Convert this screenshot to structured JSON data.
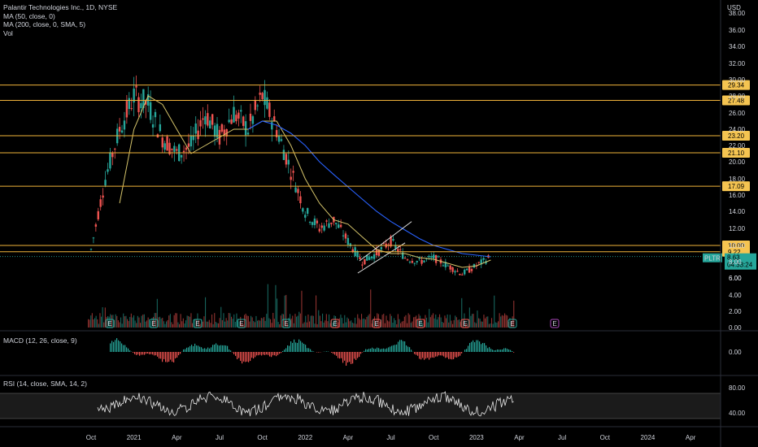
{
  "header": {
    "title": "Palantir Technologies Inc., 1D, NYSE",
    "ma50": "MA (50, close, 0)",
    "ma200": "MA (200, close, 0, SMA, 5)",
    "vol": "Vol",
    "currency": "USD"
  },
  "panes": {
    "macd_label": "MACD (12, 26, close, 9)",
    "rsi_label": "RSI (14, close, SMA, 14, 2)"
  },
  "price_tag": {
    "symbol": "PLTR",
    "price": "8.63",
    "countdown": "04:33:24"
  },
  "colors": {
    "up": "#26a69a",
    "down": "#ef5350",
    "ma50": "#d4c36a",
    "ma200": "#2962ff",
    "level": "#f0b33a",
    "level_label": "#f5c451",
    "price_tag": "#26a69a",
    "earnings": "#26a69a",
    "dividend_marker": "#ab47bc"
  },
  "chart_data": [
    {
      "type": "line",
      "title": "Palantir Technologies Inc., 1D, NYSE",
      "ylabel": "USD",
      "ylim": [
        6,
        38
      ],
      "y_ticks": [
        "38.00",
        "36.00",
        "34.00",
        "32.00",
        "30.00",
        "28.00",
        "26.00",
        "24.00",
        "22.00",
        "20.00",
        "18.00",
        "16.00",
        "14.00",
        "12.00",
        "10.00",
        "8.00",
        "6.00"
      ],
      "x_ticks": [
        "Oct",
        "2021",
        "Apr",
        "Jul",
        "Oct",
        "2022",
        "Apr",
        "Jul",
        "Oct",
        "2023",
        "Apr",
        "Jul",
        "Oct",
        "2024",
        "Apr"
      ],
      "horizontal_levels": [
        {
          "value": 29.34,
          "label": "29.34"
        },
        {
          "value": 27.48,
          "label": "27.48"
        },
        {
          "value": 23.2,
          "label": "23.20"
        },
        {
          "value": 21.1,
          "label": "21.10"
        },
        {
          "value": 17.09,
          "label": "17.09"
        },
        {
          "value": 10.0,
          "label": "10.00"
        },
        {
          "value": 9.22,
          "label": "9.22"
        }
      ],
      "last_price": 8.63,
      "series": [
        {
          "name": "PLTR",
          "x": [
            "2020-10",
            "2020-11",
            "2020-12",
            "2021-01",
            "2021-02",
            "2021-03",
            "2021-04",
            "2021-05",
            "2021-06",
            "2021-07",
            "2021-08",
            "2021-09",
            "2021-10",
            "2021-11",
            "2021-12",
            "2022-01",
            "2022-02",
            "2022-03",
            "2022-04",
            "2022-05",
            "2022-06",
            "2022-07",
            "2022-08",
            "2022-09",
            "2022-10",
            "2022-11",
            "2022-12",
            "2023-01",
            "2023-02"
          ],
          "values": [
            9.5,
            18,
            24,
            28,
            27,
            23,
            21,
            22,
            26,
            23,
            26,
            24,
            28,
            24,
            19,
            14,
            12,
            13,
            10.5,
            8,
            9,
            10.5,
            8.5,
            8,
            8.5,
            7.5,
            6.5,
            7.5,
            8.6
          ]
        },
        {
          "name": "MA (50, close, 0)",
          "x": [
            "2020-12",
            "2021-01",
            "2021-02",
            "2021-03",
            "2021-04",
            "2021-05",
            "2021-06",
            "2021-07",
            "2021-08",
            "2021-09",
            "2021-10",
            "2021-11",
            "2021-12",
            "2022-01",
            "2022-02",
            "2022-03",
            "2022-04",
            "2022-05",
            "2022-06",
            "2022-07",
            "2022-08",
            "2022-09",
            "2022-10",
            "2022-11",
            "2022-12",
            "2023-01",
            "2023-02"
          ],
          "values": [
            15,
            24,
            28,
            27,
            24,
            21,
            22,
            23,
            24,
            24,
            25,
            25,
            22,
            18,
            15,
            13,
            12.5,
            11,
            9.5,
            9,
            9,
            8.5,
            8.3,
            7.8,
            7.3,
            7.5,
            8.2
          ]
        },
        {
          "name": "MA (200, close, 0, SMA, 5)",
          "x": [
            "2021-09",
            "2021-10",
            "2021-11",
            "2021-12",
            "2022-01",
            "2022-02",
            "2022-03",
            "2022-04",
            "2022-05",
            "2022-06",
            "2022-07",
            "2022-08",
            "2022-09",
            "2022-10",
            "2022-11",
            "2022-12",
            "2023-01",
            "2023-02"
          ],
          "values": [
            24,
            25,
            24.5,
            23.5,
            22,
            20,
            18.5,
            17,
            15.5,
            14,
            12.8,
            11.8,
            10.8,
            10,
            9.5,
            9,
            8.8,
            8.6
          ]
        }
      ]
    },
    {
      "type": "bar",
      "title": "Vol",
      "y_ticks": [
        "6.00",
        "4.00",
        "2.00",
        "0.00"
      ],
      "earnings_markers": [
        "E",
        "E",
        "E",
        "E",
        "E",
        "E",
        "E",
        "E",
        "E",
        "E"
      ],
      "dividend_marker": "E"
    },
    {
      "type": "bar",
      "title": "MACD (12, 26, close, 9)",
      "y_ticks": [
        "0.00"
      ]
    },
    {
      "type": "line",
      "title": "RSI (14, close, SMA, 14, 2)",
      "y_ticks": [
        "80.00",
        "40.00"
      ],
      "band": [
        30,
        70
      ]
    }
  ]
}
